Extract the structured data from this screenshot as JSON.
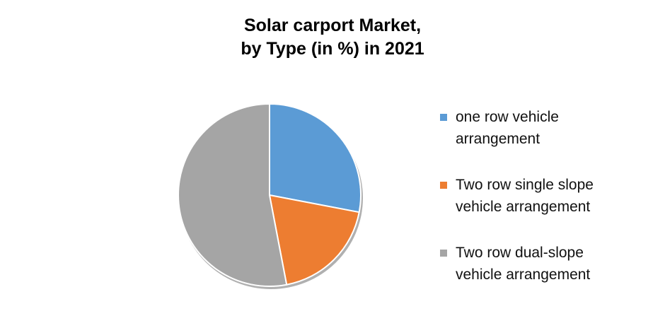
{
  "chart_data": {
    "type": "pie",
    "title_lines": [
      "Solar carport Market,",
      "by Type (in %) in 2021"
    ],
    "categories": [
      "one row vehicle arrangement",
      "Two row single slope vehicle arrangement",
      "Two row dual-slope vehicle arrangement"
    ],
    "values": [
      28,
      19,
      53
    ],
    "colors": [
      "#5B9BD5",
      "#ED7D31",
      "#A5A5A5"
    ],
    "legend": {
      "position": "right",
      "entries": [
        {
          "lines": [
            "one row vehicle",
            "arrangement"
          ],
          "color": "#5B9BD5"
        },
        {
          "lines": [
            "Two row single slope",
            "vehicle arrangement"
          ],
          "color": "#ED7D31"
        },
        {
          "lines": [
            "Two row dual-slope",
            "vehicle arrangement"
          ],
          "color": "#A5A5A5"
        }
      ]
    }
  }
}
